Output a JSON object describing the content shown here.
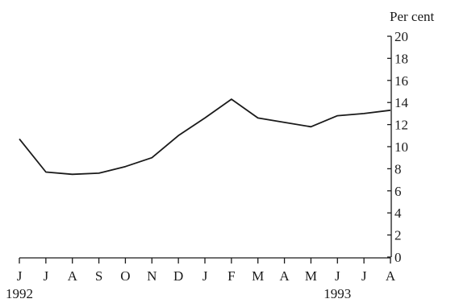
{
  "chart_data": {
    "type": "line",
    "title": "",
    "xlabel": "",
    "ylabel": "",
    "unit_label": "Per cent",
    "categories": [
      "J",
      "J",
      "A",
      "S",
      "O",
      "N",
      "D",
      "J",
      "F",
      "M",
      "A",
      "M",
      "J",
      "J",
      "A"
    ],
    "year_labels": [
      {
        "category_index": 0,
        "text": "1992"
      },
      {
        "category_index": 12,
        "text": "1993"
      }
    ],
    "series": [
      {
        "values": [
          10.7,
          7.7,
          7.5,
          7.6,
          8.2,
          9.0,
          11.0,
          12.6,
          14.3,
          12.6,
          12.2,
          11.8,
          12.8,
          13.0,
          13.3
        ]
      }
    ],
    "ylim": [
      0,
      20
    ],
    "yticks": [
      0,
      2,
      4,
      6,
      8,
      10,
      12,
      14,
      16,
      18,
      20
    ],
    "y_axis_side": "right",
    "grid": false,
    "legend": "none"
  }
}
